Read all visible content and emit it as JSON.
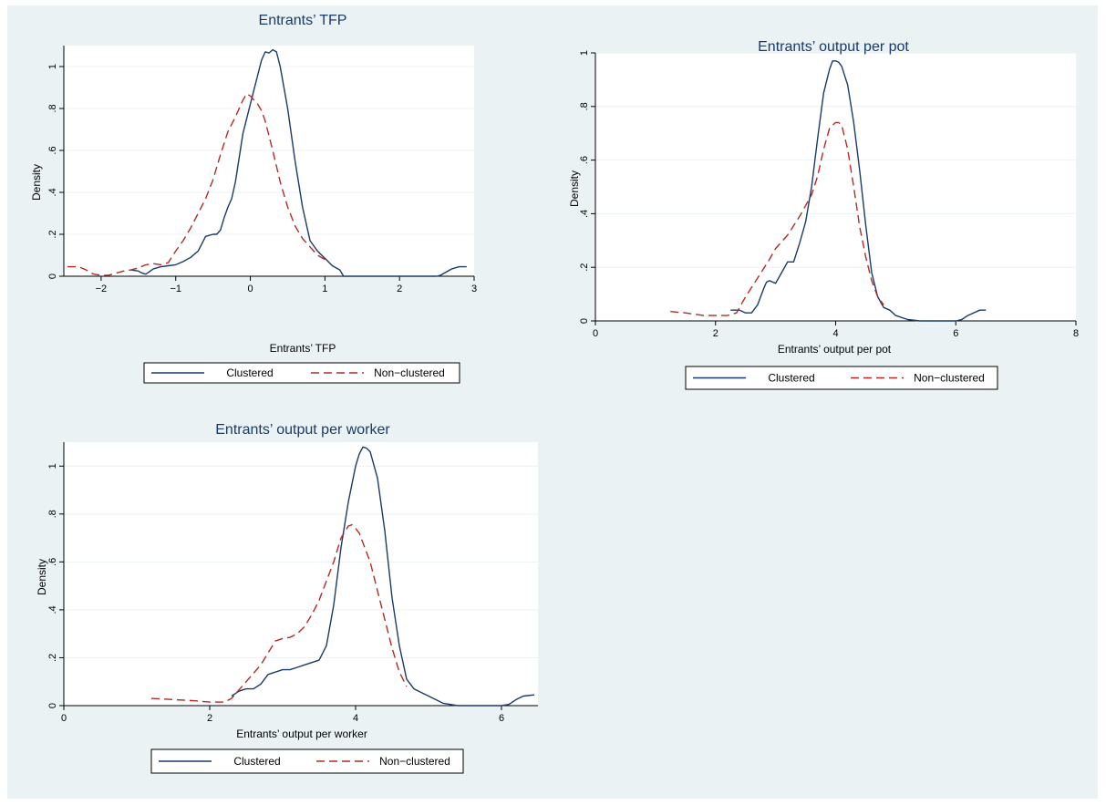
{
  "chart_data": [
    {
      "type": "line",
      "title": "Entrants’ TFP",
      "xlabel": "Entrants’ TFP",
      "ylabel": "Density",
      "xlim": [
        -2.5,
        3.0
      ],
      "ylim": [
        0,
        1.1
      ],
      "xticks": [
        -2,
        -1,
        0,
        1,
        2,
        3
      ],
      "xtick_labels": [
        "−2",
        "−1",
        "0",
        "1",
        "2",
        "3"
      ],
      "yticks": [
        0,
        0.2,
        0.4,
        0.6,
        0.8,
        1
      ],
      "ytick_labels": [
        "0",
        ".2",
        ".4",
        ".6",
        ".8",
        "1"
      ],
      "grid": true,
      "legend": "bottom",
      "series": [
        {
          "name": "Clustered",
          "color": "#1a3a6b",
          "style": "solid",
          "x": [
            -1.6,
            -1.5,
            -1.45,
            -1.4,
            -1.3,
            -1.2,
            -1.1,
            -1.0,
            -0.9,
            -0.8,
            -0.7,
            -0.6,
            -0.5,
            -0.45,
            -0.4,
            -0.35,
            -0.3,
            -0.25,
            -0.2,
            -0.1,
            0.0,
            0.1,
            0.15,
            0.2,
            0.25,
            0.3,
            0.35,
            0.4,
            0.5,
            0.6,
            0.7,
            0.8,
            0.9,
            1.0,
            1.1,
            1.2,
            1.25,
            1.5,
            2.0,
            2.5,
            2.55,
            2.7,
            2.8,
            2.9
          ],
          "y": [
            0.03,
            0.025,
            0.015,
            0.01,
            0.035,
            0.045,
            0.05,
            0.055,
            0.07,
            0.09,
            0.12,
            0.19,
            0.2,
            0.2,
            0.22,
            0.28,
            0.33,
            0.37,
            0.45,
            0.68,
            0.82,
            0.96,
            1.03,
            1.07,
            1.065,
            1.08,
            1.07,
            1.0,
            0.8,
            0.55,
            0.33,
            0.17,
            0.12,
            0.085,
            0.05,
            0.03,
            0.0,
            0.0,
            0.0,
            0.0,
            0.005,
            0.035,
            0.045,
            0.045
          ]
        },
        {
          "name": "Non−clustered",
          "color": "#b52a24",
          "style": "dash",
          "x": [
            -2.45,
            -2.3,
            -2.2,
            -2.1,
            -2.0,
            -1.9,
            -1.8,
            -1.7,
            -1.6,
            -1.5,
            -1.4,
            -1.3,
            -1.2,
            -1.1,
            -1.0,
            -0.9,
            -0.8,
            -0.7,
            -0.6,
            -0.5,
            -0.4,
            -0.3,
            -0.2,
            -0.1,
            -0.05,
            0.0,
            0.05,
            0.1,
            0.15,
            0.2,
            0.3,
            0.4,
            0.5,
            0.6,
            0.7,
            0.8,
            0.9,
            1.0,
            1.05
          ],
          "y": [
            0.045,
            0.045,
            0.03,
            0.01,
            0.005,
            0.005,
            0.015,
            0.025,
            0.03,
            0.04,
            0.055,
            0.06,
            0.055,
            0.065,
            0.12,
            0.17,
            0.23,
            0.3,
            0.37,
            0.46,
            0.58,
            0.69,
            0.76,
            0.84,
            0.87,
            0.86,
            0.84,
            0.82,
            0.79,
            0.74,
            0.6,
            0.45,
            0.33,
            0.24,
            0.18,
            0.14,
            0.1,
            0.08,
            0.07
          ]
        }
      ]
    },
    {
      "type": "line",
      "title": "Entrants’ output per pot",
      "xlabel": "Entrants’ output per pot",
      "ylabel": "Density",
      "xlim": [
        0,
        8
      ],
      "ylim": [
        0,
        1.0
      ],
      "xticks": [
        0,
        2,
        4,
        6,
        8
      ],
      "xtick_labels": [
        "0",
        "2",
        "4",
        "6",
        "8"
      ],
      "yticks": [
        0,
        0.2,
        0.4,
        0.6,
        0.8,
        1
      ],
      "ytick_labels": [
        "0",
        ".2",
        ".4",
        ".6",
        ".8",
        "1"
      ],
      "grid": true,
      "legend": "bottom",
      "series": [
        {
          "name": "Clustered",
          "color": "#1a3a6b",
          "style": "solid",
          "x": [
            2.25,
            2.4,
            2.5,
            2.6,
            2.7,
            2.8,
            2.85,
            2.9,
            3.0,
            3.1,
            3.2,
            3.3,
            3.4,
            3.5,
            3.6,
            3.7,
            3.8,
            3.9,
            3.95,
            4.0,
            4.05,
            4.1,
            4.2,
            4.3,
            4.4,
            4.5,
            4.6,
            4.7,
            4.8,
            4.9,
            5.0,
            5.2,
            5.4,
            6.0,
            6.1,
            6.2,
            6.4,
            6.5
          ],
          "y": [
            0.04,
            0.04,
            0.03,
            0.03,
            0.06,
            0.12,
            0.145,
            0.15,
            0.14,
            0.18,
            0.22,
            0.22,
            0.29,
            0.37,
            0.5,
            0.68,
            0.85,
            0.94,
            0.97,
            0.97,
            0.965,
            0.95,
            0.88,
            0.74,
            0.56,
            0.36,
            0.18,
            0.09,
            0.05,
            0.04,
            0.02,
            0.005,
            0.0,
            0.0,
            0.005,
            0.02,
            0.04,
            0.04
          ]
        },
        {
          "name": "Non−clustered",
          "color": "#b52a24",
          "style": "dash",
          "x": [
            1.25,
            1.5,
            1.8,
            2.0,
            2.2,
            2.35,
            2.5,
            2.7,
            2.9,
            3.0,
            3.2,
            3.4,
            3.6,
            3.7,
            3.8,
            3.9,
            4.0,
            4.05,
            4.1,
            4.2,
            4.3,
            4.4,
            4.5,
            4.6,
            4.7,
            4.8
          ],
          "y": [
            0.035,
            0.03,
            0.02,
            0.02,
            0.02,
            0.03,
            0.09,
            0.16,
            0.23,
            0.27,
            0.32,
            0.39,
            0.47,
            0.54,
            0.64,
            0.72,
            0.74,
            0.74,
            0.73,
            0.64,
            0.5,
            0.35,
            0.24,
            0.15,
            0.09,
            0.06
          ]
        }
      ]
    },
    {
      "type": "line",
      "title": "Entrants’ output per worker",
      "xlabel": "Entrants’ output per worker",
      "ylabel": "Density",
      "xlim": [
        0,
        6.5
      ],
      "ylim": [
        0,
        1.1
      ],
      "xticks": [
        0,
        2,
        4,
        6
      ],
      "xtick_labels": [
        "0",
        "2",
        "4",
        "6"
      ],
      "yticks": [
        0,
        0.2,
        0.4,
        0.6,
        0.8,
        1
      ],
      "ytick_labels": [
        "0",
        ".2",
        ".4",
        ".6",
        ".8",
        "1"
      ],
      "grid": true,
      "legend": "bottom",
      "series": [
        {
          "name": "Clustered",
          "color": "#1a3a6b",
          "style": "solid",
          "x": [
            2.3,
            2.4,
            2.5,
            2.6,
            2.7,
            2.8,
            2.9,
            3.0,
            3.1,
            3.2,
            3.3,
            3.4,
            3.5,
            3.6,
            3.7,
            3.8,
            3.9,
            4.0,
            4.05,
            4.1,
            4.15,
            4.2,
            4.3,
            4.4,
            4.5,
            4.6,
            4.7,
            4.8,
            5.0,
            5.2,
            5.4,
            6.0,
            6.1,
            6.2,
            6.3,
            6.45
          ],
          "y": [
            0.04,
            0.06,
            0.07,
            0.07,
            0.09,
            0.13,
            0.14,
            0.15,
            0.15,
            0.16,
            0.17,
            0.18,
            0.19,
            0.25,
            0.42,
            0.66,
            0.85,
            1.0,
            1.05,
            1.08,
            1.075,
            1.06,
            0.95,
            0.73,
            0.45,
            0.25,
            0.11,
            0.07,
            0.04,
            0.01,
            0.0,
            0.0,
            0.005,
            0.025,
            0.04,
            0.045
          ]
        },
        {
          "name": "Non−clustered",
          "color": "#b52a24",
          "style": "dash",
          "x": [
            1.2,
            1.5,
            1.8,
            2.0,
            2.2,
            2.3,
            2.5,
            2.7,
            2.8,
            2.9,
            3.0,
            3.1,
            3.2,
            3.3,
            3.4,
            3.5,
            3.6,
            3.7,
            3.8,
            3.9,
            3.95,
            4.0,
            4.05,
            4.1,
            4.2,
            4.3,
            4.4,
            4.5,
            4.6,
            4.7
          ],
          "y": [
            0.03,
            0.025,
            0.02,
            0.015,
            0.015,
            0.03,
            0.1,
            0.17,
            0.22,
            0.27,
            0.28,
            0.285,
            0.3,
            0.33,
            0.38,
            0.44,
            0.52,
            0.6,
            0.7,
            0.75,
            0.755,
            0.74,
            0.72,
            0.68,
            0.6,
            0.48,
            0.36,
            0.24,
            0.14,
            0.08
          ]
        }
      ]
    }
  ]
}
